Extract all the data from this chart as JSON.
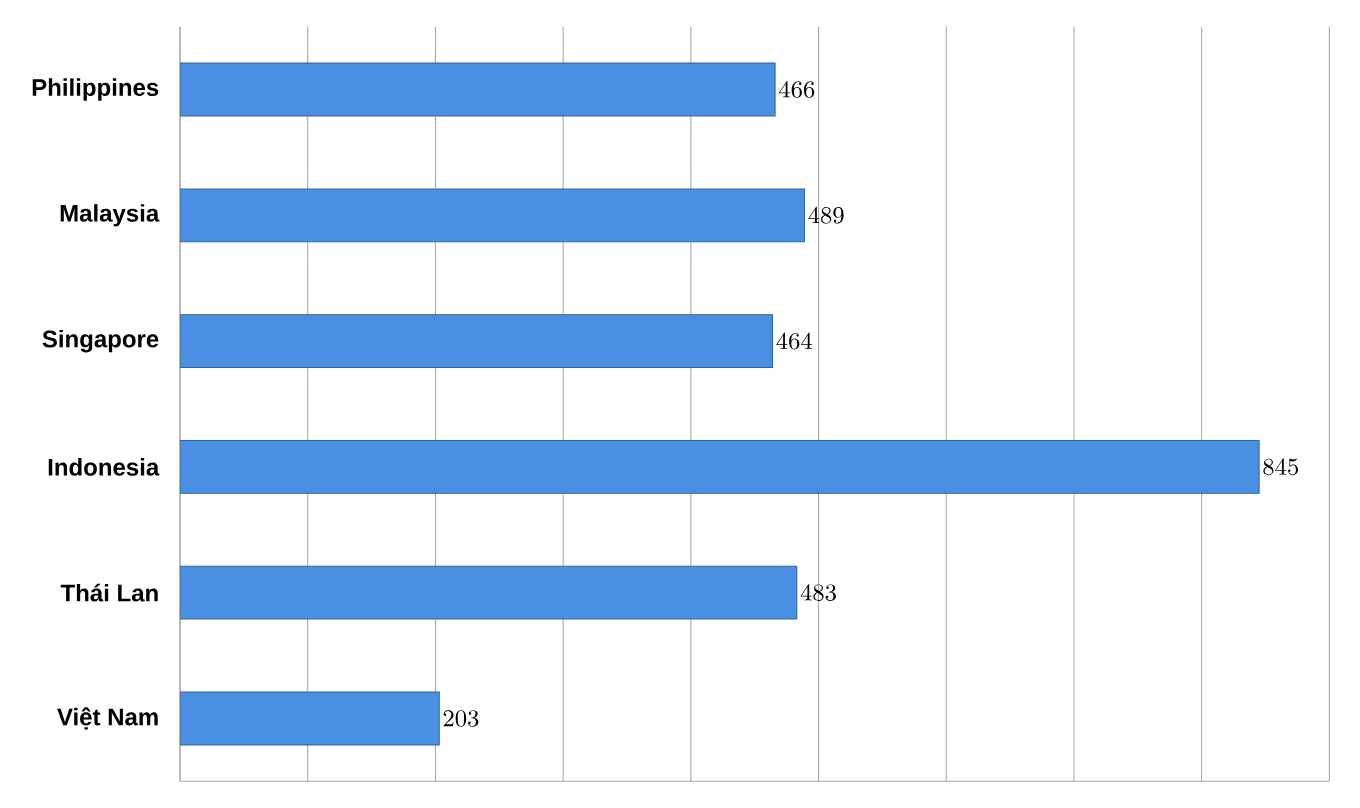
{
  "chart_data": {
    "type": "bar",
    "orientation": "horizontal",
    "categories": [
      "Philippines",
      "Malaysia",
      "Singapore",
      "Indonesia",
      "Thái Lan",
      "Việt Nam"
    ],
    "values": [
      466,
      489,
      464,
      845,
      483,
      203
    ],
    "color": "#4a90e2",
    "xlim": [
      0,
      900
    ],
    "xticks": [
      {
        "value": 0,
        "label": null
      },
      {
        "value": 100,
        "label": null
      },
      {
        "value": 200,
        "label": null
      },
      {
        "value": 300,
        "label": null
      },
      {
        "value": 400,
        "label": null
      },
      {
        "value": 500,
        "label": null
      },
      {
        "value": 600,
        "label": null
      },
      {
        "value": 700,
        "label": null
      },
      {
        "value": 800,
        "label": null
      },
      {
        "value": 900,
        "label": null
      }
    ],
    "grid": "x",
    "tick_labels": "y",
    "data_labels": true
  }
}
